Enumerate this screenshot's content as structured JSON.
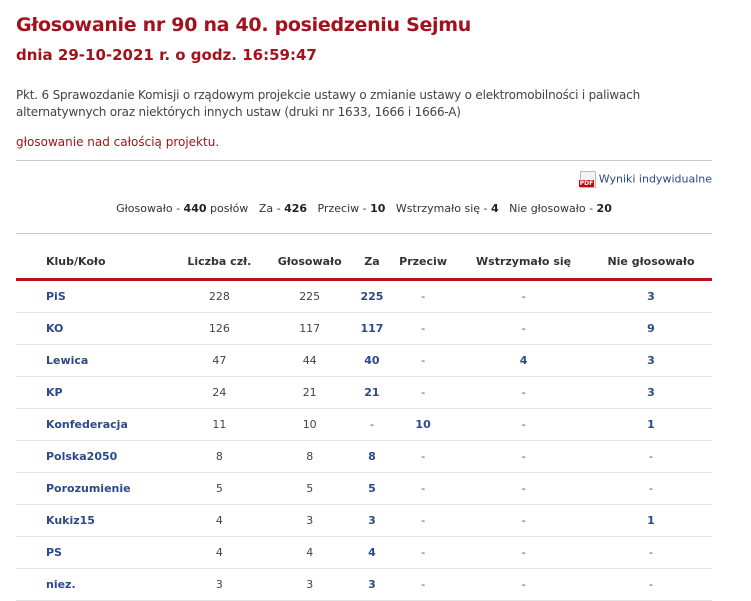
{
  "title": "Głosowanie nr 90 na 40. posiedzeniu Sejmu",
  "subtitle": "dnia 29-10-2021 r. o godz. 16:59:47",
  "description": "Pkt. 6 Sprawozdanie Komisji o rządowym projekcie ustawy o zmianie ustawy o elektromobilności i paliwach alternatywnych oraz niektórych innych ustaw (druki nr 1633, 1666 i 1666-A)",
  "vote_subject": "głosowanie nad całością projektu.",
  "pdf_link": {
    "label": "Wyniki indywidualne",
    "icon": "pdf-icon",
    "icon_text": "PDF"
  },
  "summary": {
    "voted_label": "Głosowało - ",
    "voted": "440",
    "voted_suffix": " posłów",
    "for_label": "Za - ",
    "for": "426",
    "against_label": "Przeciw - ",
    "against": "10",
    "abstain_label": "Wstrzymało się - ",
    "abstain": "4",
    "absent_label": "Nie głosowało - ",
    "absent": "20"
  },
  "table": {
    "headers": [
      "Klub/Koło",
      "Liczba czł.",
      "Głosowało",
      "Za",
      "Przeciw",
      "Wstrzymało się",
      "Nie głosowało"
    ],
    "rows": [
      [
        "PiS",
        "228",
        "225",
        "225",
        "-",
        "-",
        "3"
      ],
      [
        "KO",
        "126",
        "117",
        "117",
        "-",
        "-",
        "9"
      ],
      [
        "Lewica",
        "47",
        "44",
        "40",
        "-",
        "4",
        "3"
      ],
      [
        "KP",
        "24",
        "21",
        "21",
        "-",
        "-",
        "3"
      ],
      [
        "Konfederacja",
        "11",
        "10",
        "-",
        "10",
        "-",
        "1"
      ],
      [
        "Polska2050",
        "8",
        "8",
        "8",
        "-",
        "-",
        "-"
      ],
      [
        "Porozumienie",
        "5",
        "5",
        "5",
        "-",
        "-",
        "-"
      ],
      [
        "Kukiz15",
        "4",
        "3",
        "3",
        "-",
        "-",
        "1"
      ],
      [
        "PS",
        "4",
        "4",
        "4",
        "-",
        "-",
        "-"
      ],
      [
        "niez.",
        "3",
        "3",
        "3",
        "-",
        "-",
        "-"
      ]
    ]
  },
  "colors": {
    "accent": "#a3121c",
    "link": "#2b4a8a"
  }
}
